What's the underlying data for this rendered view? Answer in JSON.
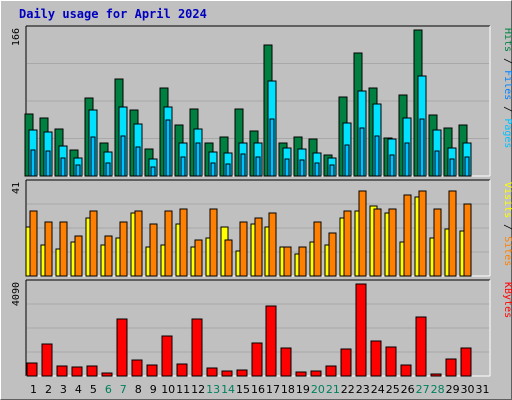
{
  "title": "Daily usage for April 2024",
  "colors": {
    "background": "#c0c0c0",
    "hits": "#008040",
    "files": "#00e0ff",
    "pages": "#00c0ff",
    "visits": "#ffff00",
    "sites": "#ff8000",
    "kbytes": "#ff0000",
    "weekend_label": "#00805c",
    "weekday_label": "#000000",
    "title": "#0000c0"
  },
  "chart_data": [
    {
      "type": "bar",
      "panel": "top",
      "scale_label": "166",
      "ylim": [
        0,
        166
      ],
      "grid": true,
      "legend": [
        {
          "label": "Pages",
          "color": "#00c0ff"
        },
        {
          "label": " / ",
          "color": "#000000"
        },
        {
          "label": "Files",
          "color": "#0080ff"
        },
        {
          "label": " / ",
          "color": "#000000"
        },
        {
          "label": "Hits",
          "color": "#008040"
        }
      ],
      "categories": [
        "1",
        "2",
        "3",
        "4",
        "5",
        "6",
        "7",
        "8",
        "9",
        "10",
        "11",
        "12",
        "13",
        "14",
        "15",
        "16",
        "17",
        "18",
        "19",
        "20",
        "21",
        "22",
        "23",
        "24",
        "25",
        "26",
        "27",
        "28",
        "29",
        "30",
        "31"
      ],
      "series": [
        {
          "name": "Hits",
          "values": [
            70,
            66,
            53,
            29,
            89,
            37,
            110,
            75,
            31,
            100,
            58,
            76,
            38,
            44,
            76,
            51,
            149,
            37,
            44,
            42,
            24,
            90,
            140,
            100,
            43,
            92,
            166,
            69,
            55,
            58,
            0
          ]
        },
        {
          "name": "Files",
          "values": [
            52,
            50,
            34,
            21,
            75,
            27,
            79,
            59,
            19,
            78,
            37,
            53,
            27,
            26,
            38,
            38,
            108,
            32,
            31,
            26,
            20,
            60,
            97,
            82,
            42,
            66,
            114,
            52,
            32,
            37,
            0
          ]
        },
        {
          "name": "Pages",
          "values": [
            30,
            28,
            20,
            12,
            44,
            15,
            46,
            33,
            10,
            64,
            22,
            38,
            15,
            14,
            25,
            22,
            65,
            19,
            18,
            15,
            12,
            35,
            55,
            45,
            24,
            38,
            65,
            28,
            19,
            22,
            0
          ]
        }
      ]
    },
    {
      "type": "bar",
      "panel": "middle",
      "scale_label": "41",
      "ylim": [
        0,
        41
      ],
      "grid": true,
      "legend": [
        {
          "label": "Sites",
          "color": "#ff8000"
        },
        {
          "label": " / ",
          "color": "#000000"
        },
        {
          "label": "Visits",
          "color": "#ffff00"
        }
      ],
      "categories": [
        "1",
        "2",
        "3",
        "4",
        "5",
        "6",
        "7",
        "8",
        "9",
        "10",
        "11",
        "12",
        "13",
        "14",
        "15",
        "16",
        "17",
        "18",
        "19",
        "20",
        "21",
        "22",
        "23",
        "24",
        "25",
        "26",
        "27",
        "28",
        "29",
        "30",
        "31"
      ],
      "series": [
        {
          "name": "Visits",
          "values": [
            22,
            14,
            12,
            15,
            26,
            14,
            17,
            28,
            13,
            14,
            23,
            13,
            17,
            22,
            11,
            23,
            22,
            13,
            10,
            15,
            14,
            26,
            29,
            31,
            28,
            15,
            35,
            17,
            21,
            20,
            0
          ]
        },
        {
          "name": "Sites",
          "values": [
            29,
            24,
            24,
            18,
            29,
            18,
            24,
            29,
            23,
            29,
            30,
            16,
            30,
            16,
            24,
            26,
            28,
            13,
            13,
            24,
            19,
            29,
            38,
            30,
            30,
            36,
            38,
            30,
            38,
            32,
            0
          ]
        }
      ]
    },
    {
      "type": "bar",
      "panel": "bottom",
      "scale_label": "4090",
      "ylim": [
        0,
        4090
      ],
      "grid": true,
      "legend": [
        {
          "label": "KBytes",
          "color": "#ff0000"
        }
      ],
      "categories": [
        "1",
        "2",
        "3",
        "4",
        "5",
        "6",
        "7",
        "8",
        "9",
        "10",
        "11",
        "12",
        "13",
        "14",
        "15",
        "16",
        "17",
        "18",
        "19",
        "20",
        "21",
        "22",
        "23",
        "24",
        "25",
        "26",
        "27",
        "28",
        "29",
        "30",
        "31"
      ],
      "series": [
        {
          "name": "KBytes",
          "values": [
            580,
            1440,
            430,
            400,
            430,
            140,
            2530,
            690,
            490,
            1800,
            530,
            2540,
            370,
            210,
            280,
            1470,
            3120,
            1240,
            170,
            230,
            450,
            1210,
            4090,
            1550,
            1280,
            470,
            2610,
            90,
            740,
            1230,
            0
          ]
        }
      ]
    }
  ],
  "days": [
    "1",
    "2",
    "3",
    "4",
    "5",
    "6",
    "7",
    "8",
    "9",
    "10",
    "11",
    "12",
    "13",
    "14",
    "15",
    "16",
    "17",
    "18",
    "19",
    "20",
    "21",
    "22",
    "23",
    "24",
    "25",
    "26",
    "27",
    "28",
    "29",
    "30",
    "31"
  ],
  "weekend_days": [
    "6",
    "7",
    "13",
    "14",
    "20",
    "21",
    "27",
    "28"
  ]
}
